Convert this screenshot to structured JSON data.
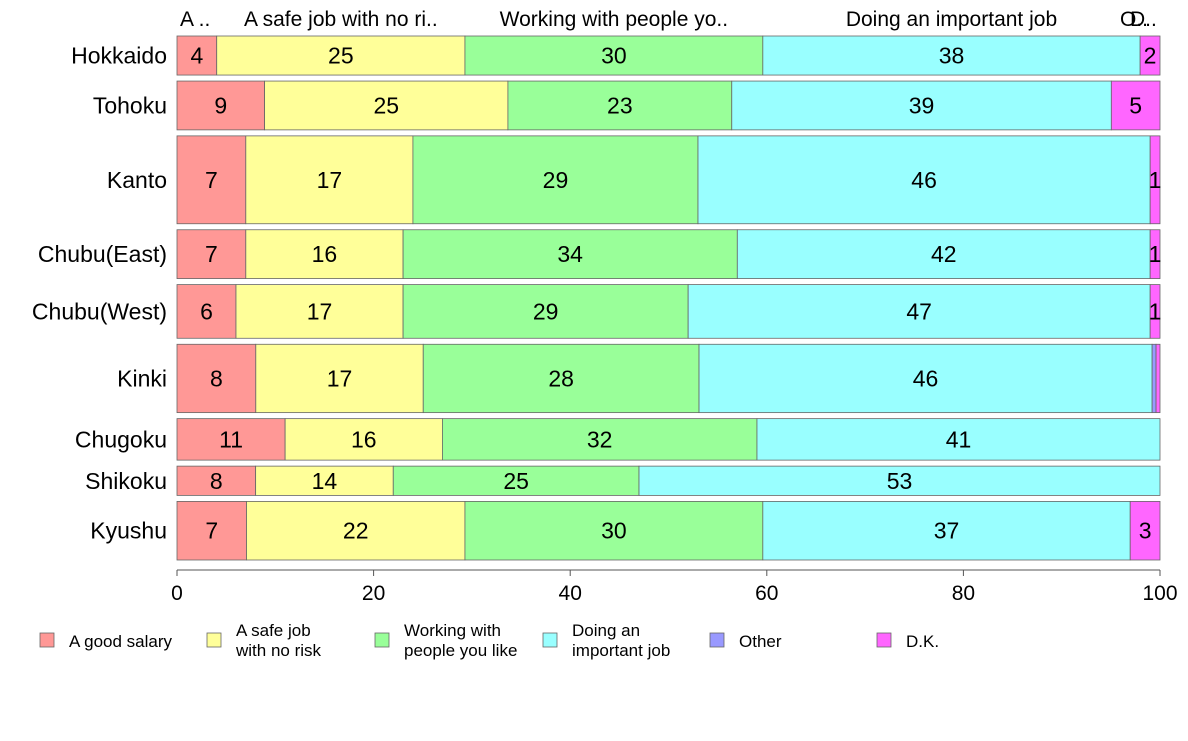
{
  "chart_data": {
    "type": "bar",
    "orientation": "horizontal",
    "stacked": true,
    "mosaic": true,
    "categories": [
      "Hokkaido",
      "Tohoku",
      "Kanto",
      "Chubu(East)",
      "Chubu(West)",
      "Kinki",
      "Chugoku",
      "Shikoku",
      "Kyushu"
    ],
    "row_weights": [
      0.8,
      1.0,
      1.8,
      1.0,
      1.1,
      1.4,
      0.85,
      0.6,
      1.2
    ],
    "series": [
      {
        "name": "A good salary",
        "legend_label": [
          "A good salary"
        ],
        "top_label": "A ..",
        "color": "#ff9896",
        "values": [
          4,
          9,
          7,
          7,
          6,
          8,
          11,
          8,
          7
        ]
      },
      {
        "name": "A safe job with no risk",
        "legend_label": [
          "A safe job",
          "with no risk"
        ],
        "top_label": "A safe job with no ri..",
        "color": "#ffff99",
        "values": [
          25,
          25,
          17,
          16,
          17,
          17,
          16,
          14,
          22
        ]
      },
      {
        "name": "Working with people you like",
        "legend_label": [
          "Working with",
          "people you like"
        ],
        "top_label": "Working with people yo..",
        "color": "#99ff99",
        "values": [
          30,
          23,
          29,
          34,
          29,
          28,
          32,
          25,
          30
        ]
      },
      {
        "name": "Doing an important job",
        "legend_label": [
          "Doing an",
          "important job"
        ],
        "top_label": "Doing an important job",
        "color": "#99ffff",
        "values": [
          38,
          39,
          46,
          42,
          47,
          46,
          41,
          53,
          37
        ]
      },
      {
        "name": "Other",
        "legend_label": [
          "Other"
        ],
        "top_label": "O..",
        "color": "#9999ff",
        "values": [
          0,
          0,
          0,
          0,
          0,
          0.4,
          0,
          0,
          0
        ]
      },
      {
        "name": "D.K.",
        "legend_label": [
          "D.K."
        ],
        "top_label": "D..",
        "color": "#ff66ff",
        "values": [
          2,
          5,
          1,
          1,
          1,
          0.4,
          0,
          0,
          3
        ]
      }
    ],
    "value_labels": [
      [
        "4",
        "25",
        "30",
        "38",
        "",
        "2"
      ],
      [
        "9",
        "25",
        "23",
        "39",
        "",
        "5"
      ],
      [
        "7",
        "17",
        "29",
        "46",
        "",
        "1"
      ],
      [
        "7",
        "16",
        "34",
        "42",
        "",
        "1"
      ],
      [
        "6",
        "17",
        "29",
        "47",
        "",
        "1"
      ],
      [
        "8",
        "17",
        "28",
        "46",
        "",
        ""
      ],
      [
        "11",
        "16",
        "32",
        "41",
        "",
        ""
      ],
      [
        "8",
        "14",
        "25",
        "53",
        "",
        ""
      ],
      [
        "7",
        "22",
        "30",
        "37",
        "",
        "3"
      ]
    ],
    "xlim": [
      0,
      100
    ],
    "xticks": [
      0,
      20,
      40,
      60,
      80,
      100
    ],
    "title": "",
    "xlabel": "",
    "ylabel": "",
    "grid": false,
    "legend_position": "bottom"
  }
}
